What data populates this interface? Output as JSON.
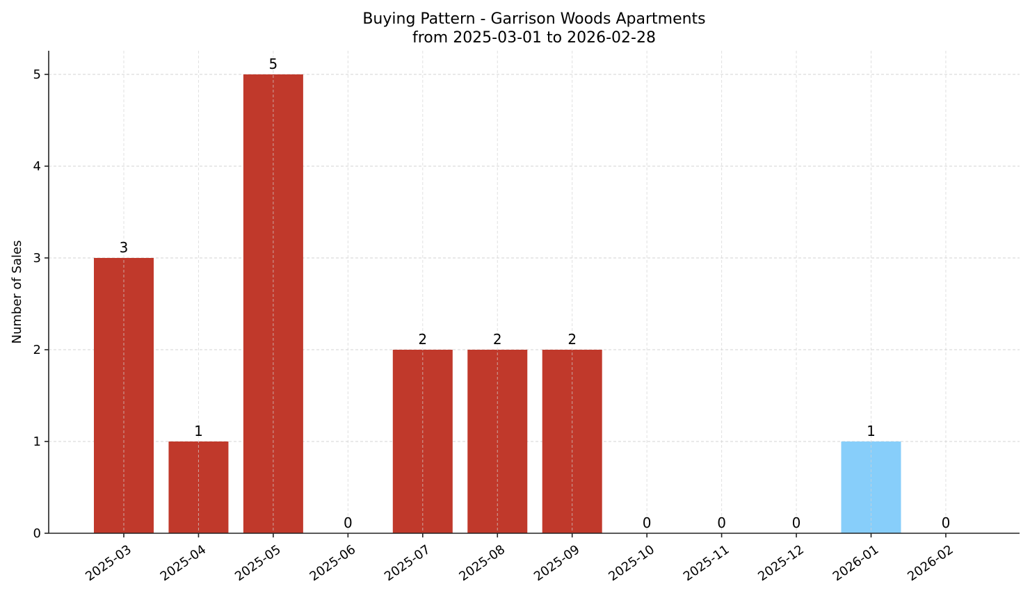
{
  "chart_data": {
    "type": "bar",
    "title": "Buying Pattern - Garrison Woods Apartments",
    "subtitle": "from 2025-03-01 to 2026-02-28",
    "xlabel": "",
    "ylabel": "Number of Sales",
    "categories": [
      "2025-03",
      "2025-04",
      "2025-05",
      "2025-06",
      "2025-07",
      "2025-08",
      "2025-09",
      "2025-10",
      "2025-11",
      "2025-12",
      "2026-01",
      "2026-02"
    ],
    "values": [
      3,
      1,
      5,
      0,
      2,
      2,
      2,
      0,
      0,
      0,
      1,
      0
    ],
    "bar_colors": [
      "#C0392B",
      "#C0392B",
      "#C0392B",
      "#C0392B",
      "#C0392B",
      "#C0392B",
      "#C0392B",
      "#C0392B",
      "#C0392B",
      "#C0392B",
      "#87CEFA",
      "#C0392B"
    ],
    "highlighted_category": "2026-01",
    "ylim": [
      0,
      5.25
    ],
    "yticks": [
      0,
      1,
      2,
      3,
      4,
      5
    ],
    "grid": true,
    "grid_style": "dashed",
    "legend": null,
    "data_labels": true,
    "xtick_rotation": 35
  },
  "colors": {
    "primary_bar": "#C0392B",
    "highlight_bar": "#87CEFA",
    "grid": "#D3D3D3",
    "axis": "#222222"
  }
}
